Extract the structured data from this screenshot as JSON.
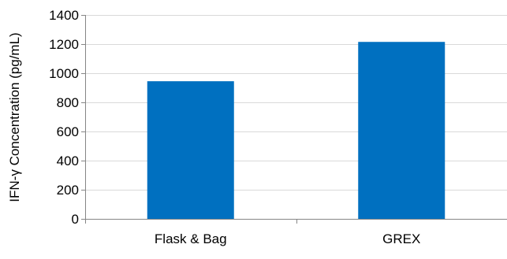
{
  "chart_data": {
    "type": "bar",
    "title": "",
    "xlabel": "",
    "ylabel": "IFN-γ Concentration (pg/mL)",
    "categories": [
      "Flask & Bag",
      "GREX"
    ],
    "values": [
      945,
      1215
    ],
    "ylim": [
      0,
      1400
    ],
    "yticks": [
      0,
      200,
      400,
      600,
      800,
      1000,
      1200,
      1400
    ],
    "ytick_labels": [
      "0",
      "200",
      "400",
      "600",
      "800",
      "1000",
      "1200",
      "1400"
    ],
    "grid": true,
    "legend": "none",
    "bar_color": "#0070C0",
    "grid_color": "#D9D9D9"
  }
}
